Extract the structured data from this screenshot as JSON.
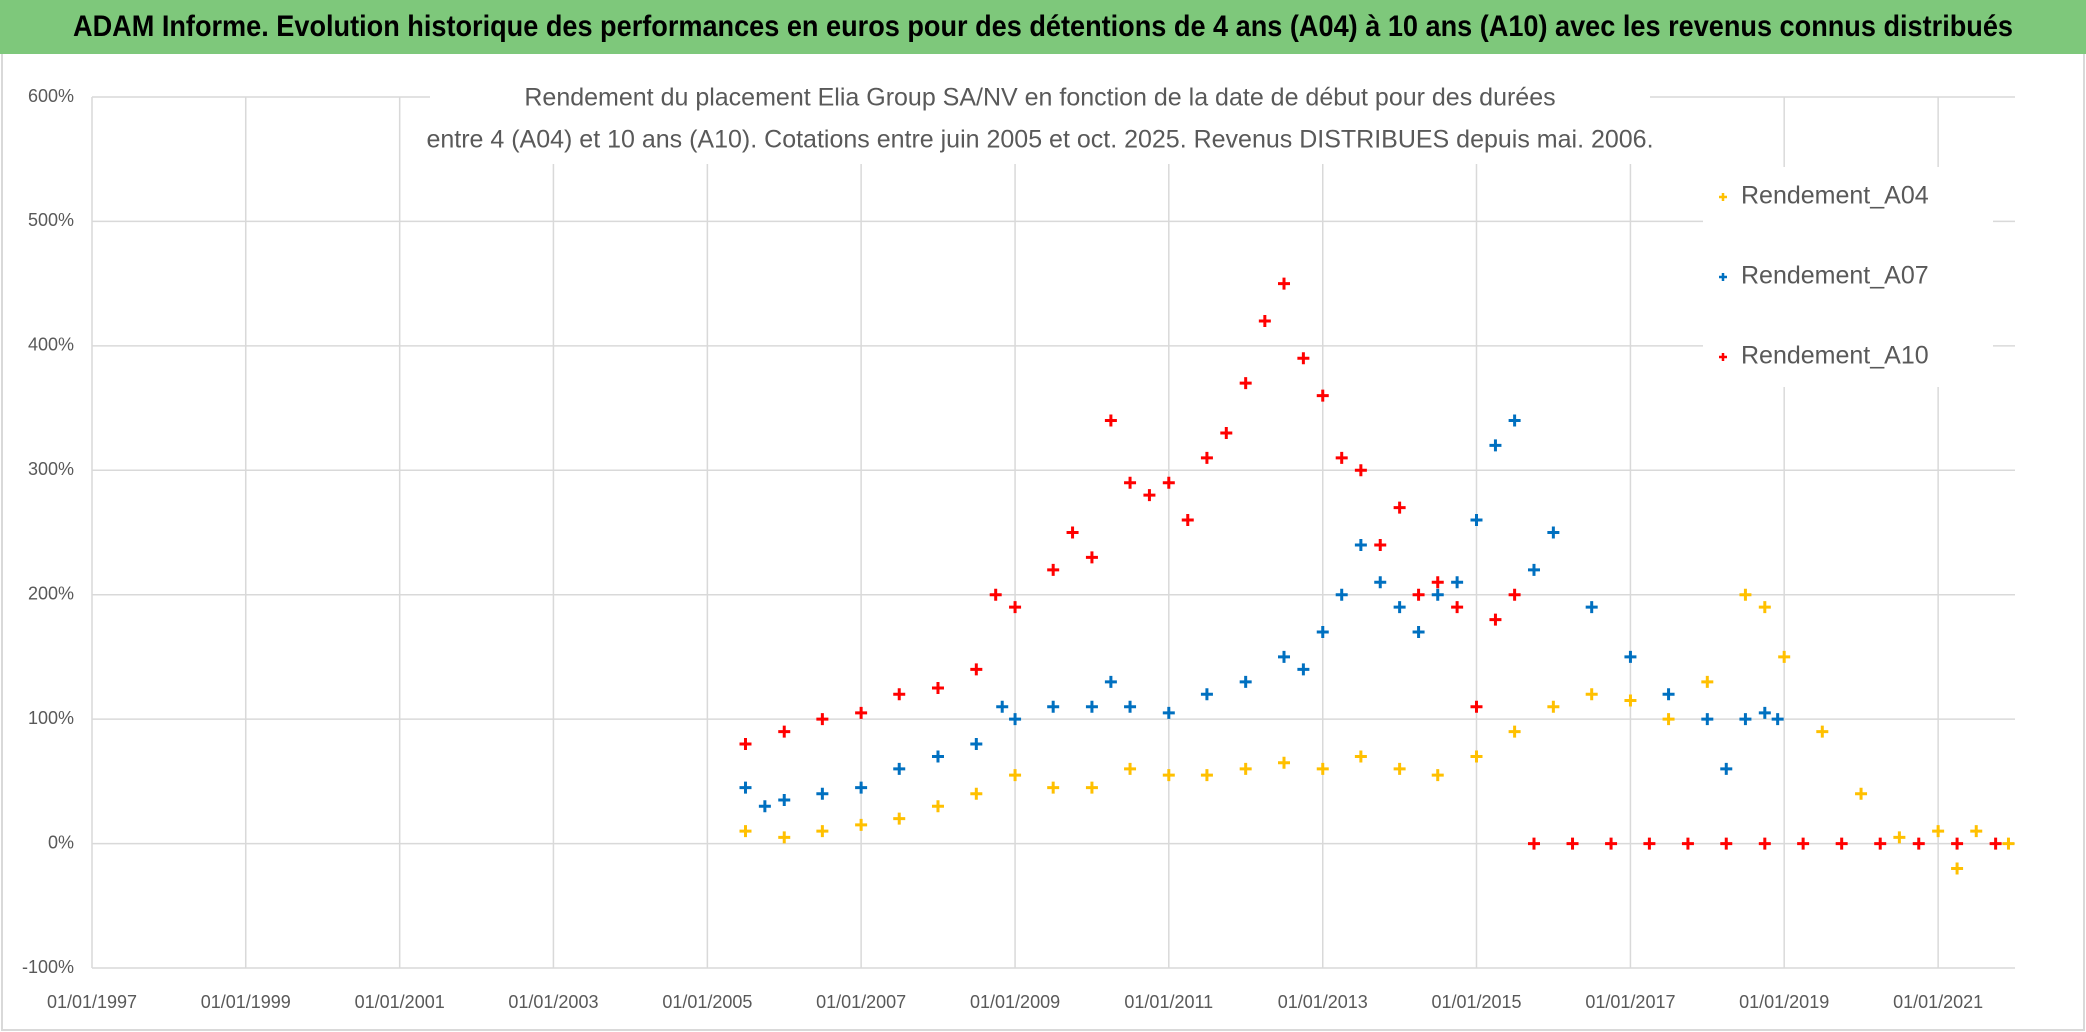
{
  "chart_data": {
    "type": "scatter",
    "title": "ADAM Informe. Evolution historique des performances en euros pour des détentions de 4 ans (A04) à 10 ans (A10) avec les revenus connus distribués",
    "subtitle": [
      "Rendement du placement Elia Group SA/NV en fonction de la date de début pour des durées",
      "entre 4 (A04) et 10 ans (A10). Cotations entre juin 2005 et oct. 2025. Revenus DISTRIBUES depuis mai. 2006."
    ],
    "xlim": [
      "1997-01-01",
      "2022-01-01"
    ],
    "xticks": [
      {
        "value": "1997-01-01",
        "label": "01/01/1997"
      },
      {
        "value": "1999-01-01",
        "label": "01/01/1999"
      },
      {
        "value": "2001-01-01",
        "label": "01/01/2001"
      },
      {
        "value": "2003-01-01",
        "label": "01/01/2003"
      },
      {
        "value": "2005-01-01",
        "label": "01/01/2005"
      },
      {
        "value": "2007-01-01",
        "label": "01/01/2007"
      },
      {
        "value": "2009-01-01",
        "label": "01/01/2009"
      },
      {
        "value": "2011-01-01",
        "label": "01/01/2011"
      },
      {
        "value": "2013-01-01",
        "label": "01/01/2013"
      },
      {
        "value": "2015-01-01",
        "label": "01/01/2015"
      },
      {
        "value": "2017-01-01",
        "label": "01/01/2017"
      },
      {
        "value": "2019-01-01",
        "label": "01/01/2019"
      },
      {
        "value": "2021-01-01",
        "label": "01/01/2021"
      }
    ],
    "ylim": [
      -100,
      600
    ],
    "yticks": [
      {
        "value": -100,
        "label": "-100%"
      },
      {
        "value": 0,
        "label": "0%"
      },
      {
        "value": 100,
        "label": "100%"
      },
      {
        "value": 200,
        "label": "200%"
      },
      {
        "value": 300,
        "label": "300%"
      },
      {
        "value": 400,
        "label": "400%"
      },
      {
        "value": 500,
        "label": "500%"
      },
      {
        "value": 600,
        "label": "600%"
      }
    ],
    "grid": true,
    "legend": "upper right",
    "series": [
      {
        "name": "Rendement_A04",
        "color": "#ffc000",
        "x": [
          "2005-07-01",
          "2006-01-01",
          "2006-07-01",
          "2007-01-01",
          "2007-07-01",
          "2008-01-01",
          "2008-07-01",
          "2009-01-01",
          "2009-07-01",
          "2010-01-01",
          "2010-07-01",
          "2011-01-01",
          "2011-07-01",
          "2012-01-01",
          "2012-07-01",
          "2013-01-01",
          "2013-07-01",
          "2014-01-01",
          "2014-07-01",
          "2015-01-01",
          "2015-07-01",
          "2016-01-01",
          "2016-07-01",
          "2017-01-01",
          "2017-07-01",
          "2018-01-01",
          "2018-07-01",
          "2018-10-01",
          "2019-01-01",
          "2019-07-01",
          "2020-01-01",
          "2020-07-01",
          "2021-01-01",
          "2021-04-01",
          "2021-07-01",
          "2021-12-01"
        ],
        "values": [
          10,
          5,
          10,
          15,
          20,
          30,
          40,
          55,
          45,
          45,
          60,
          55,
          55,
          60,
          65,
          60,
          70,
          60,
          55,
          70,
          90,
          110,
          120,
          115,
          100,
          130,
          200,
          190,
          150,
          90,
          40,
          5,
          10,
          -20,
          10,
          0
        ]
      },
      {
        "name": "Rendement_A07",
        "color": "#0070c0",
        "x": [
          "2005-07-01",
          "2005-10-01",
          "2006-01-01",
          "2006-07-01",
          "2007-01-01",
          "2007-07-01",
          "2008-01-01",
          "2008-07-01",
          "2008-11-01",
          "2009-01-01",
          "2009-07-01",
          "2010-01-01",
          "2010-04-01",
          "2010-07-01",
          "2011-01-01",
          "2011-07-01",
          "2012-01-01",
          "2012-07-01",
          "2012-10-01",
          "2013-01-01",
          "2013-04-01",
          "2013-07-01",
          "2013-10-01",
          "2014-01-01",
          "2014-04-01",
          "2014-07-01",
          "2014-10-01",
          "2015-01-01",
          "2015-04-01",
          "2015-07-01",
          "2015-10-01",
          "2016-01-01",
          "2016-07-01",
          "2017-01-01",
          "2017-07-01",
          "2018-01-01",
          "2018-04-01",
          "2018-07-01",
          "2018-10-01",
          "2018-12-01"
        ],
        "values": [
          45,
          30,
          35,
          40,
          45,
          60,
          70,
          80,
          110,
          100,
          110,
          110,
          130,
          110,
          105,
          120,
          130,
          150,
          140,
          170,
          200,
          240,
          210,
          190,
          170,
          200,
          210,
          260,
          320,
          340,
          220,
          250,
          190,
          150,
          120,
          100,
          60,
          100,
          105,
          100
        ]
      },
      {
        "name": "Rendement_A10",
        "color": "#ff0000",
        "x": [
          "2005-07-01",
          "2006-01-01",
          "2006-07-01",
          "2007-01-01",
          "2007-07-01",
          "2008-01-01",
          "2008-07-01",
          "2008-10-01",
          "2009-01-01",
          "2009-07-01",
          "2009-10-01",
          "2010-01-01",
          "2010-04-01",
          "2010-07-01",
          "2010-10-01",
          "2011-01-01",
          "2011-04-01",
          "2011-07-01",
          "2011-10-01",
          "2012-01-01",
          "2012-04-01",
          "2012-07-01",
          "2012-10-01",
          "2013-01-01",
          "2013-04-01",
          "2013-07-01",
          "2013-10-01",
          "2014-01-01",
          "2014-04-01",
          "2014-07-01",
          "2014-10-01",
          "2015-01-01",
          "2015-04-01",
          "2015-07-01",
          "2015-10-01",
          "2016-04-01",
          "2016-10-01",
          "2017-04-01",
          "2017-10-01",
          "2018-04-01",
          "2018-10-01",
          "2019-04-01",
          "2019-10-01",
          "2020-04-01",
          "2020-10-01",
          "2021-04-01",
          "2021-10-01"
        ],
        "values": [
          80,
          90,
          100,
          105,
          120,
          125,
          140,
          200,
          190,
          220,
          250,
          230,
          340,
          290,
          280,
          290,
          260,
          310,
          330,
          370,
          420,
          450,
          390,
          360,
          310,
          300,
          240,
          270,
          200,
          210,
          190,
          110,
          180,
          200,
          0,
          0,
          0,
          0,
          0,
          0,
          0,
          0,
          0,
          0,
          0,
          0,
          0
        ]
      }
    ]
  }
}
